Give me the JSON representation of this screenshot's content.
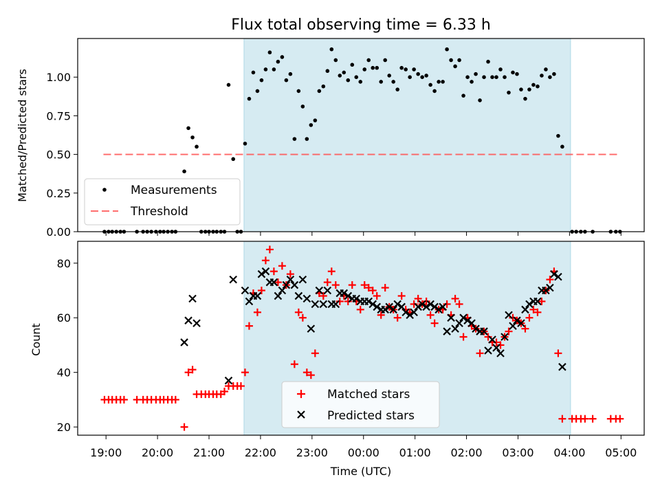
{
  "chart_data": {
    "type": "scatter",
    "title": "Flux total observing time = 6.33 h",
    "xlabel": "Time (UTC)",
    "x_tick_labels": [
      "19:00",
      "20:00",
      "21:00",
      "22:00",
      "23:00",
      "00:00",
      "01:00",
      "02:00",
      "03:00",
      "04:00",
      "05:00"
    ],
    "x_range_hours": [
      -0.55,
      10.45
    ],
    "observing_window_hours": [
      2.68,
      9.02
    ],
    "top_panel": {
      "ylabel": "Matched/Predicted stars",
      "ylim": [
        0,
        1.25
      ],
      "y_tick_labels": [
        "0.00",
        "0.25",
        "0.50",
        "0.75",
        "1.00"
      ],
      "threshold": 0.5,
      "threshold_x_range": [
        -0.05,
        9.98
      ],
      "legend": {
        "position": "lower-left",
        "measurements": "Measurements",
        "threshold": "Threshold"
      },
      "measurements": [
        [
          -0.03,
          0
        ],
        [
          0.05,
          0
        ],
        [
          0.12,
          0
        ],
        [
          0.2,
          0
        ],
        [
          0.28,
          0
        ],
        [
          0.35,
          0
        ],
        [
          0.6,
          0
        ],
        [
          0.72,
          0
        ],
        [
          0.8,
          0
        ],
        [
          0.88,
          0
        ],
        [
          0.97,
          0
        ],
        [
          1.05,
          0
        ],
        [
          1.12,
          0
        ],
        [
          1.2,
          0
        ],
        [
          1.28,
          0
        ],
        [
          1.35,
          0
        ],
        [
          1.52,
          0.39
        ],
        [
          1.6,
          0.67
        ],
        [
          1.68,
          0.61
        ],
        [
          1.76,
          0.55
        ],
        [
          1.85,
          0
        ],
        [
          1.93,
          0
        ],
        [
          2.0,
          0
        ],
        [
          2.08,
          0
        ],
        [
          2.15,
          0
        ],
        [
          2.23,
          0
        ],
        [
          2.3,
          0
        ],
        [
          2.38,
          0.95
        ],
        [
          2.47,
          0.47
        ],
        [
          2.55,
          0
        ],
        [
          2.62,
          0
        ],
        [
          2.7,
          0.57
        ],
        [
          2.78,
          0.86
        ],
        [
          2.86,
          1.03
        ],
        [
          2.94,
          0.91
        ],
        [
          3.02,
          0.98
        ],
        [
          3.1,
          1.05
        ],
        [
          3.18,
          1.16
        ],
        [
          3.26,
          1.05
        ],
        [
          3.34,
          1.1
        ],
        [
          3.42,
          1.13
        ],
        [
          3.5,
          0.98
        ],
        [
          3.58,
          1.02
        ],
        [
          3.66,
          0.6
        ],
        [
          3.74,
          0.91
        ],
        [
          3.82,
          0.81
        ],
        [
          3.9,
          0.6
        ],
        [
          3.98,
          0.69
        ],
        [
          4.06,
          0.72
        ],
        [
          4.14,
          0.91
        ],
        [
          4.22,
          0.94
        ],
        [
          4.3,
          1.04
        ],
        [
          4.38,
          1.18
        ],
        [
          4.46,
          1.11
        ],
        [
          4.54,
          1.01
        ],
        [
          4.62,
          1.03
        ],
        [
          4.7,
          0.98
        ],
        [
          4.78,
          1.08
        ],
        [
          4.86,
          1.0
        ],
        [
          4.94,
          0.97
        ],
        [
          5.02,
          1.05
        ],
        [
          5.1,
          1.11
        ],
        [
          5.18,
          1.06
        ],
        [
          5.26,
          1.06
        ],
        [
          5.34,
          0.97
        ],
        [
          5.42,
          1.11
        ],
        [
          5.5,
          1.01
        ],
        [
          5.58,
          0.97
        ],
        [
          5.66,
          0.92
        ],
        [
          5.74,
          1.06
        ],
        [
          5.82,
          1.05
        ],
        [
          5.9,
          1.0
        ],
        [
          5.98,
          1.05
        ],
        [
          6.06,
          1.02
        ],
        [
          6.14,
          1.0
        ],
        [
          6.22,
          1.01
        ],
        [
          6.3,
          0.95
        ],
        [
          6.38,
          0.91
        ],
        [
          6.46,
          0.97
        ],
        [
          6.54,
          0.97
        ],
        [
          6.62,
          1.18
        ],
        [
          6.7,
          1.11
        ],
        [
          6.78,
          1.07
        ],
        [
          6.86,
          1.11
        ],
        [
          6.94,
          0.88
        ],
        [
          7.02,
          1.0
        ],
        [
          7.1,
          0.97
        ],
        [
          7.18,
          1.02
        ],
        [
          7.26,
          0.85
        ],
        [
          7.34,
          1.0
        ],
        [
          7.42,
          1.1
        ],
        [
          7.5,
          1.0
        ],
        [
          7.58,
          1.0
        ],
        [
          7.66,
          1.05
        ],
        [
          7.74,
          1.0
        ],
        [
          7.82,
          0.9
        ],
        [
          7.9,
          1.03
        ],
        [
          7.98,
          1.02
        ],
        [
          8.06,
          0.92
        ],
        [
          8.14,
          0.86
        ],
        [
          8.22,
          0.92
        ],
        [
          8.3,
          0.95
        ],
        [
          8.38,
          0.94
        ],
        [
          8.46,
          1.01
        ],
        [
          8.54,
          1.05
        ],
        [
          8.62,
          1.0
        ],
        [
          8.7,
          1.02
        ],
        [
          8.78,
          0.62
        ],
        [
          8.86,
          0.55
        ],
        [
          9.05,
          0
        ],
        [
          9.13,
          0
        ],
        [
          9.22,
          0
        ],
        [
          9.3,
          0
        ],
        [
          9.45,
          0
        ],
        [
          9.8,
          0
        ],
        [
          9.9,
          0
        ],
        [
          9.98,
          0
        ]
      ]
    },
    "bottom_panel": {
      "ylabel": "Count",
      "ylim": [
        17,
        88
      ],
      "y_tick_labels": [
        "20",
        "40",
        "60",
        "80"
      ],
      "legend": {
        "position": "lower-center",
        "matched": "Matched stars",
        "predicted": "Predicted stars"
      },
      "matched": [
        [
          -0.03,
          30
        ],
        [
          0.05,
          30
        ],
        [
          0.12,
          30
        ],
        [
          0.2,
          30
        ],
        [
          0.28,
          30
        ],
        [
          0.35,
          30
        ],
        [
          0.6,
          30
        ],
        [
          0.72,
          30
        ],
        [
          0.8,
          30
        ],
        [
          0.88,
          30
        ],
        [
          0.97,
          30
        ],
        [
          1.05,
          30
        ],
        [
          1.12,
          30
        ],
        [
          1.2,
          30
        ],
        [
          1.28,
          30
        ],
        [
          1.35,
          30
        ],
        [
          1.52,
          20
        ],
        [
          1.6,
          40
        ],
        [
          1.68,
          41
        ],
        [
          1.76,
          32
        ],
        [
          1.85,
          32
        ],
        [
          1.93,
          32
        ],
        [
          2.0,
          32
        ],
        [
          2.08,
          32
        ],
        [
          2.15,
          32
        ],
        [
          2.23,
          32
        ],
        [
          2.3,
          33
        ],
        [
          2.38,
          35
        ],
        [
          2.47,
          35
        ],
        [
          2.55,
          35
        ],
        [
          2.62,
          35
        ],
        [
          2.7,
          40
        ],
        [
          2.78,
          57
        ],
        [
          2.86,
          69
        ],
        [
          2.94,
          62
        ],
        [
          3.02,
          70
        ],
        [
          3.1,
          81
        ],
        [
          3.18,
          85
        ],
        [
          3.26,
          77
        ],
        [
          3.34,
          73
        ],
        [
          3.42,
          79
        ],
        [
          3.5,
          72
        ],
        [
          3.58,
          76
        ],
        [
          3.66,
          43
        ],
        [
          3.74,
          62
        ],
        [
          3.82,
          60
        ],
        [
          3.9,
          40
        ],
        [
          3.98,
          39
        ],
        [
          4.06,
          47
        ],
        [
          4.14,
          69
        ],
        [
          4.22,
          68
        ],
        [
          4.3,
          73
        ],
        [
          4.38,
          77
        ],
        [
          4.46,
          72
        ],
        [
          4.54,
          66
        ],
        [
          4.62,
          68
        ],
        [
          4.7,
          66
        ],
        [
          4.78,
          72
        ],
        [
          4.86,
          66
        ],
        [
          4.94,
          63
        ],
        [
          5.02,
          72
        ],
        [
          5.1,
          71
        ],
        [
          5.18,
          70
        ],
        [
          5.26,
          68
        ],
        [
          5.34,
          61
        ],
        [
          5.42,
          71
        ],
        [
          5.5,
          64
        ],
        [
          5.58,
          63
        ],
        [
          5.66,
          60
        ],
        [
          5.74,
          68
        ],
        [
          5.82,
          63
        ],
        [
          5.9,
          62
        ],
        [
          5.98,
          65
        ],
        [
          6.06,
          67
        ],
        [
          6.14,
          65
        ],
        [
          6.22,
          66
        ],
        [
          6.3,
          61
        ],
        [
          6.38,
          58
        ],
        [
          6.46,
          63
        ],
        [
          6.54,
          63
        ],
        [
          6.62,
          65
        ],
        [
          6.7,
          61
        ],
        [
          6.78,
          67
        ],
        [
          6.86,
          65
        ],
        [
          6.94,
          53
        ],
        [
          7.02,
          60
        ],
        [
          7.1,
          57
        ],
        [
          7.18,
          56
        ],
        [
          7.26,
          47
        ],
        [
          7.34,
          55
        ],
        [
          7.42,
          53
        ],
        [
          7.5,
          51
        ],
        [
          7.58,
          51
        ],
        [
          7.66,
          50
        ],
        [
          7.74,
          53
        ],
        [
          7.82,
          55
        ],
        [
          7.9,
          60
        ],
        [
          7.98,
          59
        ],
        [
          8.06,
          58
        ],
        [
          8.14,
          56
        ],
        [
          8.22,
          60
        ],
        [
          8.3,
          63
        ],
        [
          8.38,
          62
        ],
        [
          8.46,
          66
        ],
        [
          8.54,
          70
        ],
        [
          8.62,
          74
        ],
        [
          8.7,
          77
        ],
        [
          8.78,
          47
        ],
        [
          8.86,
          23
        ],
        [
          9.05,
          23
        ],
        [
          9.13,
          23
        ],
        [
          9.22,
          23
        ],
        [
          9.3,
          23
        ],
        [
          9.45,
          23
        ],
        [
          9.8,
          23
        ],
        [
          9.9,
          23
        ],
        [
          9.98,
          23
        ]
      ],
      "predicted": [
        [
          1.52,
          51
        ],
        [
          1.6,
          59
        ],
        [
          1.68,
          67
        ],
        [
          1.76,
          58
        ],
        [
          2.38,
          37
        ],
        [
          2.47,
          74
        ],
        [
          2.7,
          70
        ],
        [
          2.78,
          66
        ],
        [
          2.86,
          68
        ],
        [
          2.94,
          68
        ],
        [
          3.02,
          76
        ],
        [
          3.1,
          77
        ],
        [
          3.18,
          73
        ],
        [
          3.26,
          73
        ],
        [
          3.34,
          68
        ],
        [
          3.42,
          70
        ],
        [
          3.5,
          72
        ],
        [
          3.58,
          74
        ],
        [
          3.66,
          72
        ],
        [
          3.74,
          68
        ],
        [
          3.82,
          74
        ],
        [
          3.9,
          67
        ],
        [
          3.98,
          56
        ],
        [
          4.06,
          65
        ],
        [
          4.14,
          70
        ],
        [
          4.22,
          65
        ],
        [
          4.3,
          70
        ],
        [
          4.38,
          65
        ],
        [
          4.46,
          65
        ],
        [
          4.54,
          69
        ],
        [
          4.62,
          69
        ],
        [
          4.7,
          68
        ],
        [
          4.78,
          67
        ],
        [
          4.86,
          67
        ],
        [
          4.94,
          66
        ],
        [
          5.02,
          66
        ],
        [
          5.1,
          66
        ],
        [
          5.18,
          65
        ],
        [
          5.26,
          64
        ],
        [
          5.34,
          63
        ],
        [
          5.42,
          63
        ],
        [
          5.5,
          64
        ],
        [
          5.58,
          63
        ],
        [
          5.66,
          65
        ],
        [
          5.74,
          64
        ],
        [
          5.82,
          62
        ],
        [
          5.9,
          61
        ],
        [
          5.98,
          62
        ],
        [
          6.06,
          64
        ],
        [
          6.14,
          65
        ],
        [
          6.22,
          64
        ],
        [
          6.3,
          65
        ],
        [
          6.38,
          64
        ],
        [
          6.46,
          63
        ],
        [
          6.54,
          64
        ],
        [
          6.62,
          55
        ],
        [
          6.7,
          60
        ],
        [
          6.78,
          56
        ],
        [
          6.86,
          58
        ],
        [
          6.94,
          60
        ],
        [
          7.02,
          59
        ],
        [
          7.1,
          58
        ],
        [
          7.18,
          56
        ],
        [
          7.26,
          55
        ],
        [
          7.34,
          55
        ],
        [
          7.42,
          48
        ],
        [
          7.5,
          52
        ],
        [
          7.58,
          49
        ],
        [
          7.66,
          47
        ],
        [
          7.74,
          53
        ],
        [
          7.82,
          61
        ],
        [
          7.9,
          57
        ],
        [
          7.98,
          59
        ],
        [
          8.06,
          58
        ],
        [
          8.14,
          63
        ],
        [
          8.22,
          65
        ],
        [
          8.3,
          66
        ],
        [
          8.38,
          66
        ],
        [
          8.46,
          70
        ],
        [
          8.54,
          70
        ],
        [
          8.62,
          71
        ],
        [
          8.7,
          76
        ],
        [
          8.78,
          75
        ],
        [
          8.86,
          42
        ]
      ]
    }
  }
}
